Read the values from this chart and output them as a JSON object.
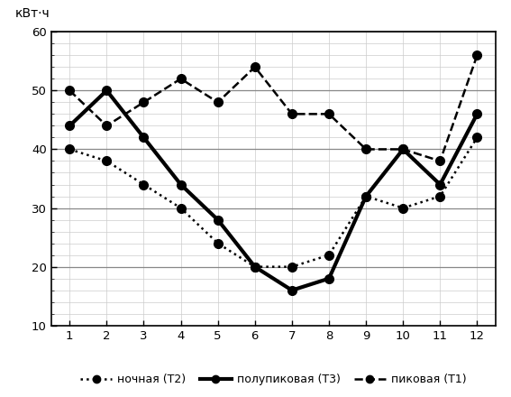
{
  "x": [
    1,
    2,
    3,
    4,
    5,
    6,
    7,
    8,
    9,
    10,
    11,
    12
  ],
  "nochnaya_T2": [
    40,
    38,
    34,
    30,
    24,
    20,
    20,
    22,
    32,
    30,
    32,
    42
  ],
  "polupeak_T3": [
    44,
    50,
    42,
    34,
    28,
    20,
    16,
    18,
    32,
    40,
    34,
    46
  ],
  "peak_T1": [
    50,
    44,
    48,
    52,
    48,
    54,
    46,
    46,
    40,
    40,
    38,
    56
  ],
  "ylabel": "кВт·ч",
  "ylim": [
    10,
    60
  ],
  "yticks": [
    10,
    20,
    30,
    40,
    50,
    60
  ],
  "xticks": [
    1,
    2,
    3,
    4,
    5,
    6,
    7,
    8,
    9,
    10,
    11,
    12
  ],
  "legend_nochnaya": "ночная (T2)",
  "legend_polupeak": "полупиковая (T3)",
  "legend_peak": "пиковая (T1)",
  "line_color": "#000000",
  "bg_color": "#ffffff",
  "grid_color_minor": "#cccccc",
  "grid_color_major": "#888888"
}
